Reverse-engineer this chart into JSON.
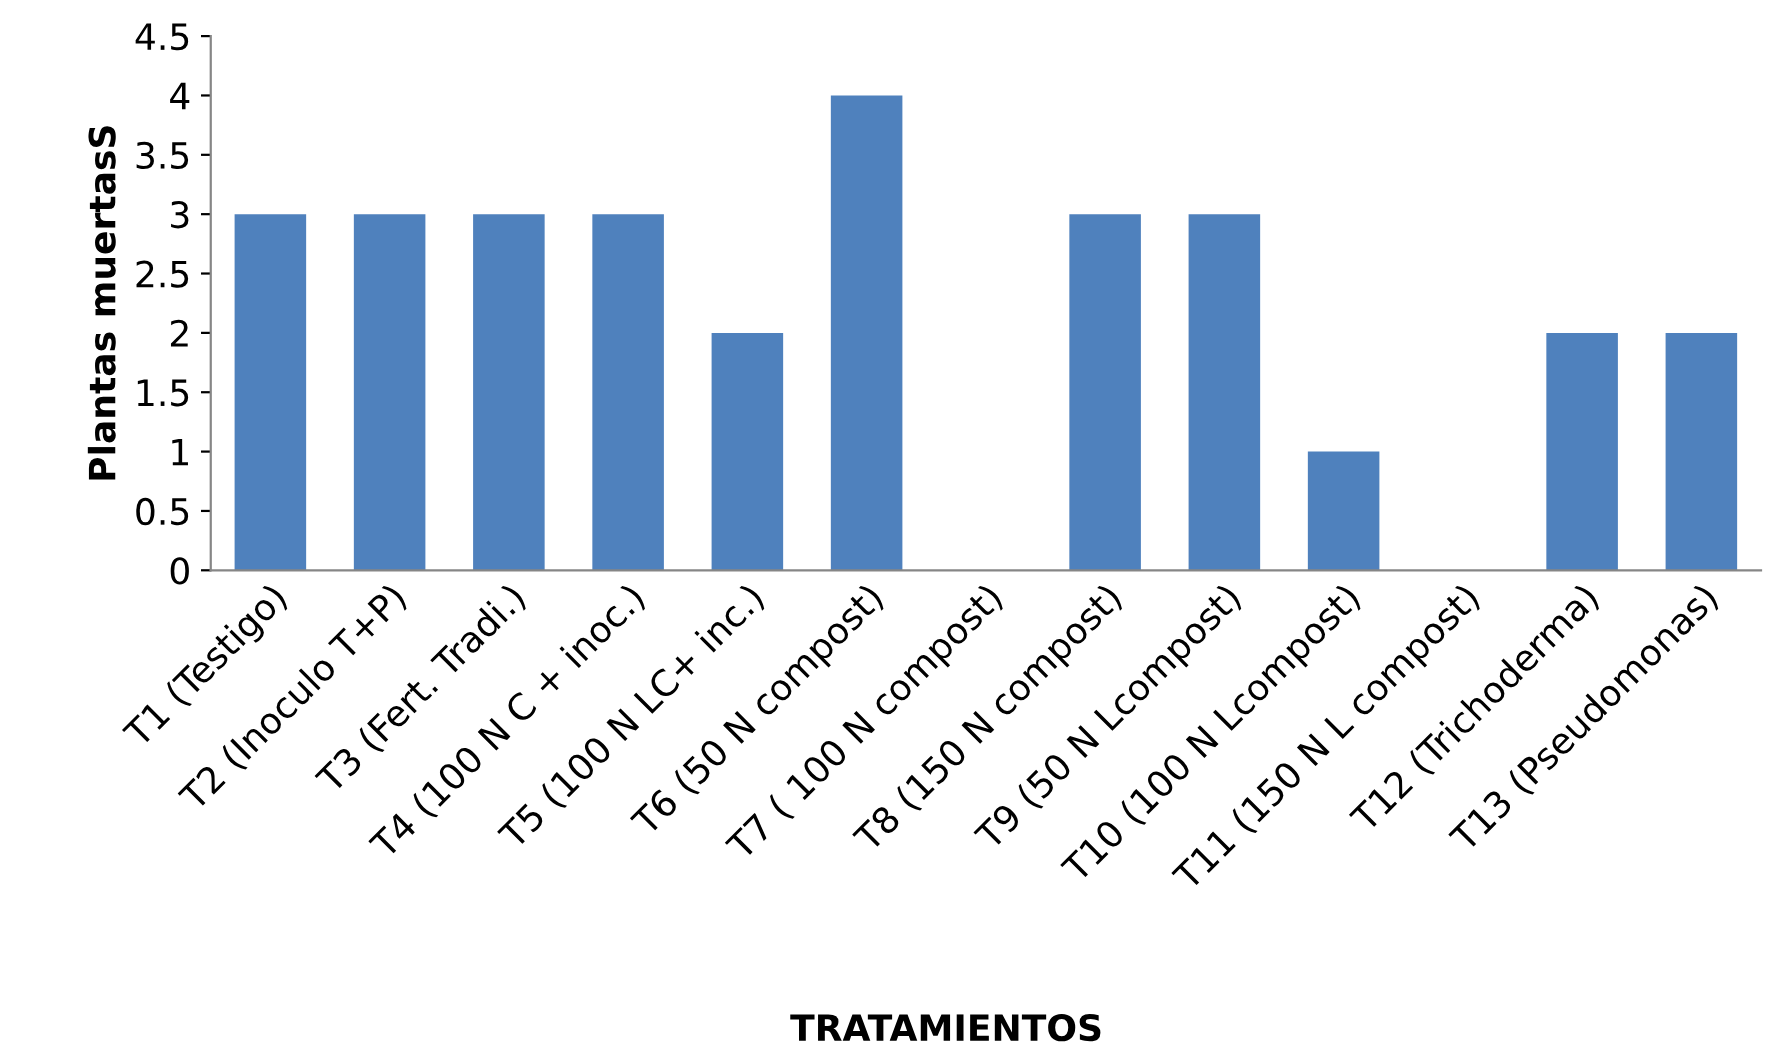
{
  "chart_data": {
    "type": "bar",
    "xlabel": "TRATAMIENTOS",
    "ylabel": "Plantas muertasS",
    "categories": [
      "T1 (Testigo)",
      "T2 (Inoculo T+P)",
      "T3 (Fert. Tradi.)",
      "T4 (100 N C + inoc.)",
      "T5 (100 N LC+ inc.)",
      "T6 (50 N compost)",
      "T7 ( 100 N compost)",
      "T8 (150 N compost)",
      "T9 (50 N Lcompost)",
      "T10 (100 N Lcompost)",
      "T11 (150 N L compost)",
      "T12 (Trichoderma)",
      "T13 (Pseudomonas)"
    ],
    "values": [
      3,
      3,
      3,
      3,
      2,
      4,
      0,
      3,
      3,
      1,
      0,
      2,
      2
    ],
    "color": "#4f81bd",
    "ylim": [
      0,
      4.5
    ],
    "yticks": [
      0,
      0.5,
      1,
      1.5,
      2,
      2.5,
      3,
      3.5,
      4,
      4.5
    ],
    "grid": false,
    "legend": false
  }
}
